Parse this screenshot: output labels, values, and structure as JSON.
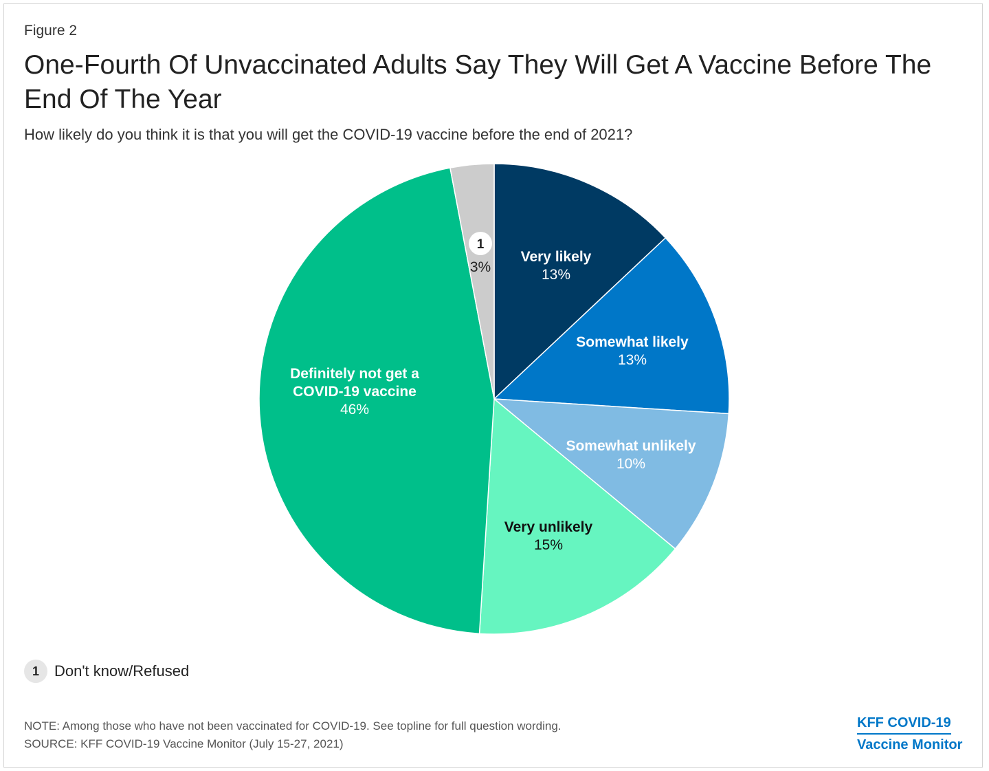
{
  "figure_label": "Figure 2",
  "title": "One-Fourth Of Unvaccinated Adults Say They Will Get A Vaccine Before The End Of The Year",
  "subtitle": "How likely do you think it is that you will get the COVID-19 vaccine before the end of 2021?",
  "chart_data": {
    "type": "pie",
    "title": "One-Fourth Of Unvaccinated Adults Say They Will Get A Vaccine Before The End Of The Year",
    "subtitle": "How likely do you think it is that you will get the COVID-19 vaccine before the end of 2021?",
    "slices": [
      {
        "label": "Very likely",
        "value": 13,
        "value_label": "13%",
        "color": "#003a63",
        "text_color": "#ffffff"
      },
      {
        "label": "Somewhat likely",
        "value": 13,
        "value_label": "13%",
        "color": "#0077c8",
        "text_color": "#ffffff"
      },
      {
        "label": "Somewhat unlikely",
        "value": 10,
        "value_label": "10%",
        "color": "#80bbe3",
        "text_color": "#ffffff"
      },
      {
        "label": "Very unlikely",
        "value": 15,
        "value_label": "15%",
        "color": "#66f5c0",
        "text_color": "#111111"
      },
      {
        "label": "Definitely not get a COVID-19 vaccine",
        "label_lines": [
          "Definitely not get a",
          "COVID-19 vaccine"
        ],
        "value": 46,
        "value_label": "46%",
        "color": "#00bf8a",
        "text_color": "#ffffff"
      },
      {
        "label": "1",
        "value": 3,
        "value_label": "3%",
        "color": "#cccccc",
        "text_color": "#222222",
        "footnote": "1"
      }
    ],
    "legend": [
      {
        "marker": "1",
        "label": "Don't know/Refused"
      }
    ]
  },
  "legend": {
    "marker": "1",
    "label": "Don't know/Refused"
  },
  "note": "NOTE: Among those who have not been vaccinated for COVID-19. See topline for full question wording.",
  "source": "SOURCE: KFF COVID-19 Vaccine Monitor (July 15-27, 2021)",
  "brand": {
    "line1": "KFF COVID-19",
    "line2": "Vaccine Monitor"
  }
}
